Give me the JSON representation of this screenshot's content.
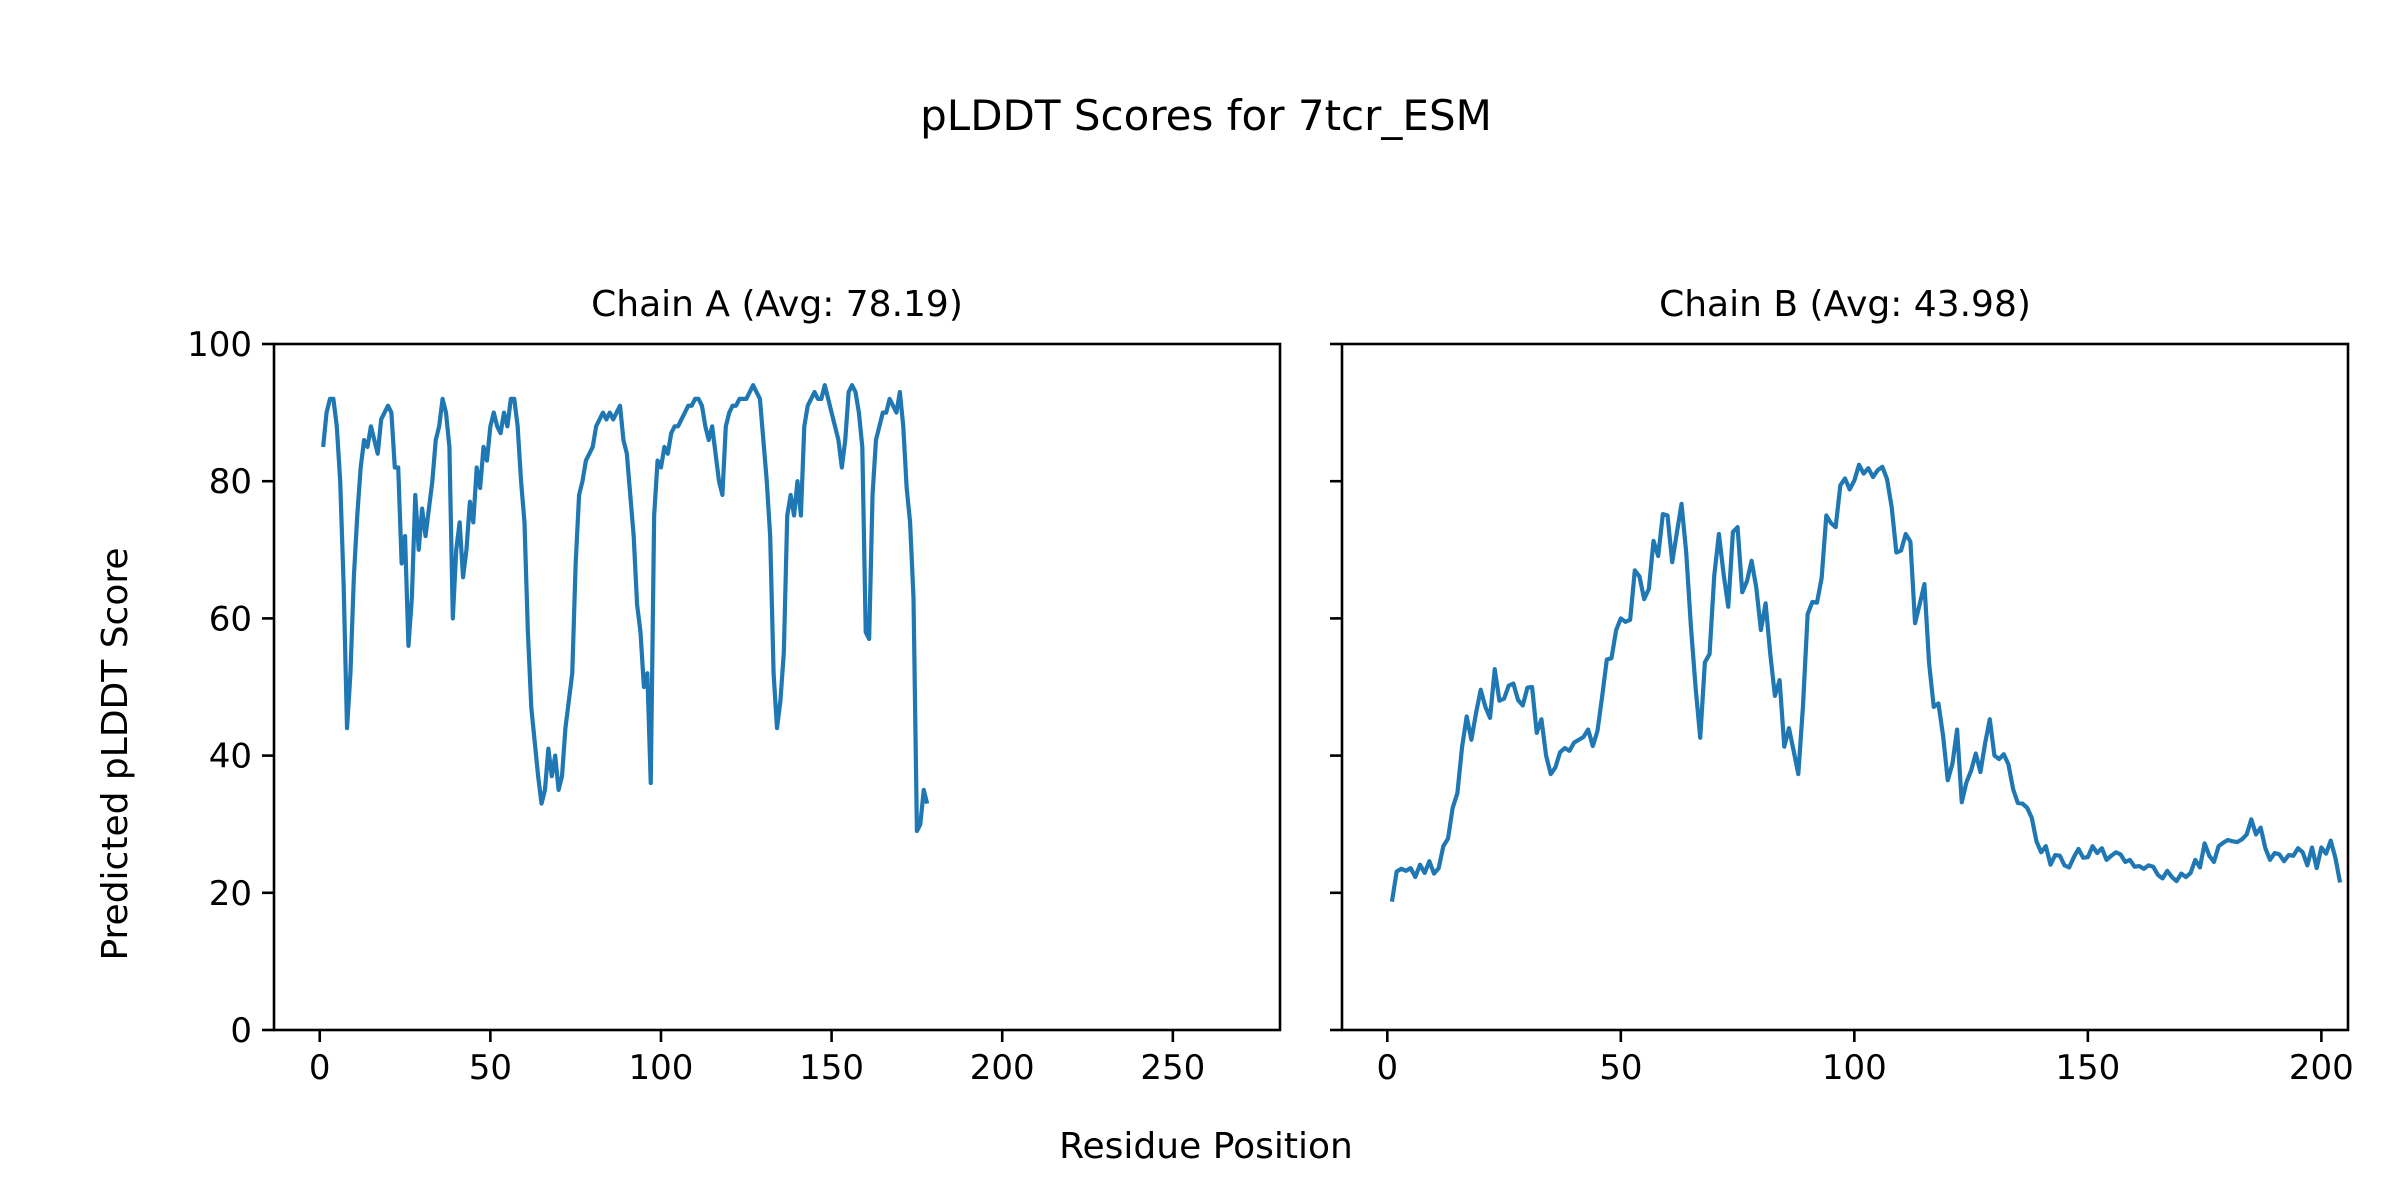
{
  "figure": {
    "title": "pLDDT Scores for 7tcr_ESM",
    "xlabel": "Residue Position",
    "ylabel": "Predicted pLDDT Score"
  },
  "colors": {
    "series": "#1f77b4",
    "axes": "#000000",
    "background": "#ffffff"
  },
  "chart_data": [
    {
      "type": "line",
      "title": "Chain A (Avg: 78.19)",
      "xlabel": "Residue Position",
      "ylabel": "Predicted pLDDT Score",
      "xlim": [
        -13.4,
        281.4
      ],
      "ylim": [
        0,
        100
      ],
      "xticks": [
        0,
        50,
        100,
        150,
        200,
        250
      ],
      "yticks": [
        0,
        20,
        40,
        60,
        80,
        100
      ],
      "grid": false,
      "x_start": 1,
      "series": [
        {
          "color": "#1f77b4",
          "values": [
            85,
            90,
            92,
            92,
            88,
            80,
            65,
            44,
            52,
            66,
            75,
            82,
            86,
            85,
            88,
            86,
            84,
            89,
            90,
            91,
            90,
            82,
            82,
            68,
            72,
            56,
            63,
            78,
            70,
            76,
            72,
            76,
            80,
            86,
            88,
            92,
            90,
            85,
            60,
            70,
            74,
            66,
            70,
            77,
            74,
            82,
            79,
            85,
            83,
            88,
            90,
            88,
            87,
            90,
            88,
            92,
            92,
            88,
            80,
            74,
            58,
            47,
            42,
            37,
            33,
            35,
            41,
            37,
            40,
            35,
            37,
            44,
            48,
            52,
            68,
            78,
            80,
            83,
            84,
            85,
            88,
            89,
            90,
            89,
            90,
            89,
            90,
            91,
            86,
            84,
            78,
            72,
            62,
            58,
            50,
            52,
            36,
            75,
            83,
            82,
            85,
            84,
            87,
            88,
            88,
            89,
            90,
            91,
            91,
            92,
            92,
            91,
            88,
            86,
            88,
            84,
            80,
            78,
            88,
            90,
            91,
            91,
            92,
            92,
            92,
            93,
            94,
            93,
            92,
            86,
            80,
            72,
            52,
            44,
            48,
            55,
            75,
            78,
            75,
            80,
            75,
            88,
            91,
            92,
            93,
            92,
            92,
            94,
            92,
            90,
            88,
            86,
            82,
            86,
            93,
            94,
            93,
            90,
            85,
            58,
            57,
            78,
            86,
            88,
            90,
            90,
            92,
            91,
            90,
            93,
            88,
            79,
            74,
            63,
            29,
            30,
            35,
            33
          ]
        }
      ]
    },
    {
      "type": "line",
      "title": "Chain B (Avg: 43.98)",
      "xlabel": "Residue Position",
      "ylabel": "Predicted pLDDT Score",
      "xlim": [
        -9.7,
        205.7
      ],
      "ylim": [
        0,
        100
      ],
      "xticks": [
        0,
        50,
        100,
        150,
        200
      ],
      "yticks": [
        0,
        20,
        40,
        60,
        80,
        100
      ],
      "grid": false,
      "x_start": 1,
      "series": [
        {
          "color": "#1f77b4",
          "values": [
            18.7,
            23.1,
            23.5,
            23.2,
            23.6,
            22.3,
            24.1,
            22.9,
            24.6,
            22.8,
            23.6,
            26.8,
            27.9,
            32.4,
            34.5,
            41.2,
            45.7,
            42.3,
            46.2,
            49.6,
            47.1,
            45.5,
            52.6,
            48.0,
            48.3,
            50.2,
            50.5,
            48.1,
            47.3,
            49.9,
            50.0,
            43.3,
            45.3,
            40.0,
            37.3,
            38.3,
            40.5,
            41.1,
            40.7,
            41.9,
            42.3,
            42.7,
            43.8,
            41.4,
            43.6,
            48.6,
            54.0,
            54.2,
            58.3,
            60.0,
            59.5,
            59.8,
            67.0,
            66.1,
            62.8,
            64.3,
            71.3,
            69.1,
            75.2,
            75.0,
            68.2,
            72.5,
            76.7,
            69.6,
            58.9,
            50.0,
            42.6,
            53.6,
            54.8,
            66.2,
            72.3,
            66.5,
            61.7,
            72.6,
            73.3,
            63.8,
            65.4,
            68.4,
            64.5,
            58.3,
            62.2,
            54.8,
            48.7,
            51.0,
            41.3,
            44.0,
            40.7,
            37.3,
            47.2,
            60.6,
            62.4,
            62.3,
            65.9,
            75.0,
            73.9,
            73.3,
            79.4,
            80.4,
            78.8,
            80.1,
            82.4,
            81.1,
            81.9,
            80.6,
            81.6,
            82.1,
            80.3,
            76.2,
            69.6,
            69.9,
            72.3,
            71.2,
            59.3,
            62.1,
            65.0,
            53.5,
            47.1,
            47.6,
            42.9,
            36.4,
            38.8,
            43.8,
            33.2,
            36.1,
            37.8,
            40.3,
            37.6,
            41.8,
            45.3,
            40.0,
            39.5,
            40.2,
            38.7,
            35.1,
            33.1,
            33.0,
            32.4,
            30.9,
            27.5,
            25.9,
            26.8,
            24.1,
            25.5,
            25.4,
            24.0,
            23.7,
            25.2,
            26.4,
            25.1,
            25.2,
            26.8,
            25.8,
            26.5,
            24.8,
            25.4,
            25.9,
            25.6,
            24.5,
            24.8,
            23.8,
            23.9,
            23.5,
            24.0,
            23.8,
            22.6,
            22.1,
            23.2,
            22.3,
            21.7,
            22.8,
            22.3,
            22.9,
            24.8,
            23.7,
            27.2,
            25.4,
            24.5,
            26.8,
            27.3,
            27.7,
            27.5,
            27.4,
            27.8,
            28.5,
            30.7,
            28.5,
            29.5,
            26.5,
            24.8,
            25.8,
            25.6,
            24.6,
            25.5,
            25.4,
            26.5,
            25.9,
            24.0,
            26.6,
            23.6,
            26.6,
            25.7,
            27.6,
            25.1,
            21.5
          ]
        }
      ]
    }
  ]
}
